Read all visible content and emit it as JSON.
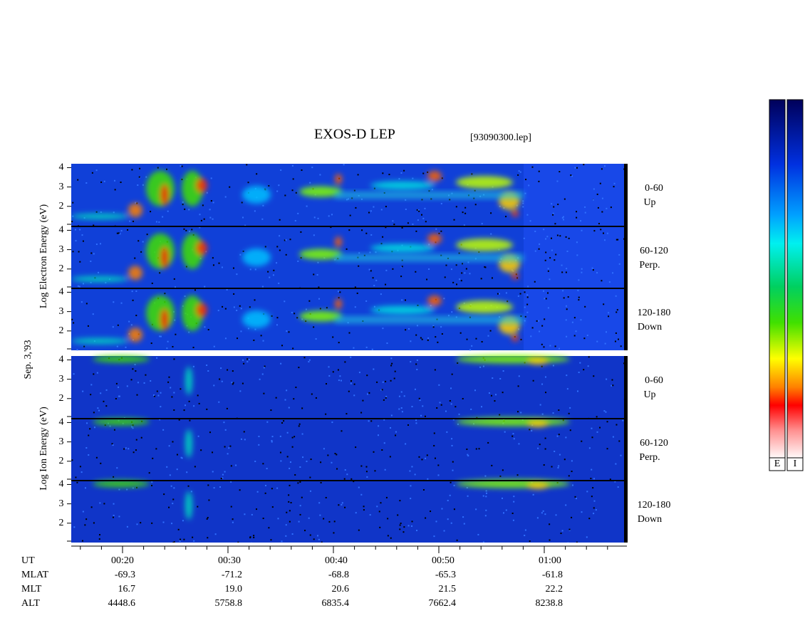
{
  "header": {
    "title": "EXOS-D LEP",
    "file": "[93090300.lep]"
  },
  "electron_label": "Log Electron Energy (eV)",
  "ion_label": "Log Ion Energy (eV)",
  "date": "Sep. 3,'93",
  "yticks": [
    2,
    3,
    4
  ],
  "panels": [
    {
      "angle": "0-60",
      "direction": "Up"
    },
    {
      "angle": "60-120",
      "direction": "Perp."
    },
    {
      "angle": "120-180",
      "direction": "Down"
    },
    {
      "angle": "0-60",
      "direction": "Up"
    },
    {
      "angle": "60-120",
      "direction": "Perp."
    },
    {
      "angle": "120-180",
      "direction": "Down"
    }
  ],
  "table": {
    "rows": [
      {
        "label": "UT",
        "values": [
          "00:20",
          "00:30",
          "00:40",
          "00:50",
          "01:00"
        ]
      },
      {
        "label": "MLAT",
        "values": [
          "-69.3",
          "-71.2",
          "-68.8",
          "-65.3",
          "-61.8"
        ]
      },
      {
        "label": "MLT",
        "values": [
          "16.7",
          "19.0",
          "20.6",
          "21.5",
          "22.2"
        ]
      },
      {
        "label": "ALT",
        "values": [
          "4448.6",
          "5758.8",
          "6835.4",
          "7662.4",
          "8238.8"
        ]
      }
    ]
  },
  "colorbar_labels": [
    "E",
    "I"
  ]
}
